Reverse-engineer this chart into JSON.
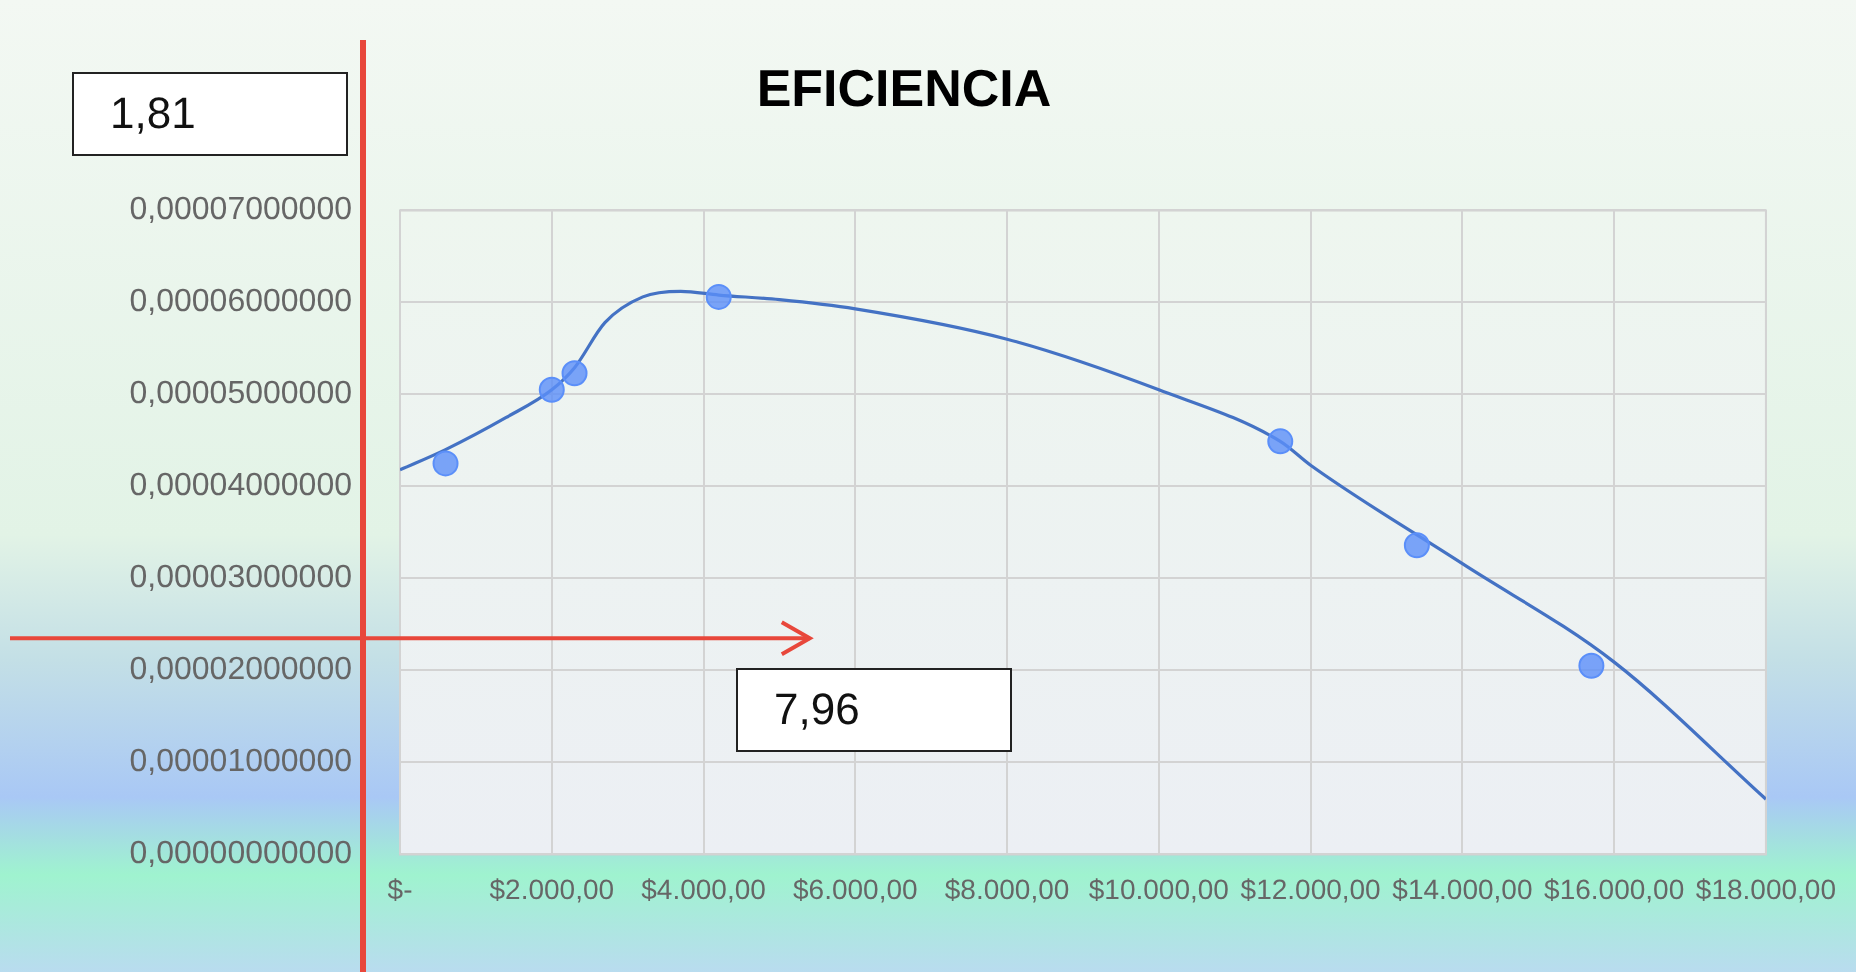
{
  "chart_data": {
    "type": "scatter",
    "title": "EFICIENCIA",
    "xlim": [
      0,
      18000
    ],
    "xticks": [
      {
        "value": 0,
        "label": "$-"
      },
      {
        "value": 2000,
        "label": "$2.000,00"
      },
      {
        "value": 4000,
        "label": "$4.000,00"
      },
      {
        "value": 6000,
        "label": "$6.000,00"
      },
      {
        "value": 8000,
        "label": "$8.000,00"
      },
      {
        "value": 10000,
        "label": "$10.000,00"
      },
      {
        "value": 12000,
        "label": "$12.000,00"
      },
      {
        "value": 14000,
        "label": "$14.000,00"
      },
      {
        "value": 16000,
        "label": "$16.000,00"
      },
      {
        "value": 18000,
        "label": "$18.000,00"
      }
    ],
    "ylim": [
      0,
      7e-05
    ],
    "yticks": [
      {
        "value": 0,
        "label": "0,00000000000"
      },
      {
        "value": 1e-05,
        "label": "0,00001000000"
      },
      {
        "value": 2e-05,
        "label": "0,00002000000"
      },
      {
        "value": 3e-05,
        "label": "0,00003000000"
      },
      {
        "value": 4e-05,
        "label": "0,00004000000"
      },
      {
        "value": 5e-05,
        "label": "0,00005000000"
      },
      {
        "value": 6e-05,
        "label": "0,00006000000"
      },
      {
        "value": 7e-05,
        "label": "0,00007000000"
      }
    ],
    "grid": true,
    "series": [
      {
        "type": "scatter",
        "color": "#5b8ff9",
        "marker": "circle",
        "x": [
          600,
          2000,
          2300,
          4200,
          11600,
          13400,
          15700
        ],
        "values": [
          4.25e-05,
          5.05e-05,
          5.23e-05,
          6.06e-05,
          4.49e-05,
          3.36e-05,
          2.05e-05
        ]
      },
      {
        "type": "line",
        "color": "#4472c4",
        "marker": "none",
        "x": [
          0,
          600,
          1400,
          2000,
          2300,
          2700,
          3200,
          3700,
          4200,
          5000,
          6000,
          8000,
          10000,
          11600,
          12000,
          14000,
          16000,
          18000
        ],
        "values": [
          4.18e-05,
          4.4e-05,
          4.75e-05,
          5.05e-05,
          5.29e-05,
          5.78e-05,
          6.06e-05,
          6.12e-05,
          6.08e-05,
          6.03e-05,
          5.93e-05,
          5.6e-05,
          5.05e-05,
          4.49e-05,
          4.23e-05,
          3.16e-05,
          2.09e-05,
          6e-06
        ]
      }
    ],
    "ref_lines": [
      {
        "axis": "y",
        "value": 2.35e-05,
        "color": "#e8473b"
      }
    ],
    "annotations": [
      "1,81",
      "7,96"
    ]
  }
}
